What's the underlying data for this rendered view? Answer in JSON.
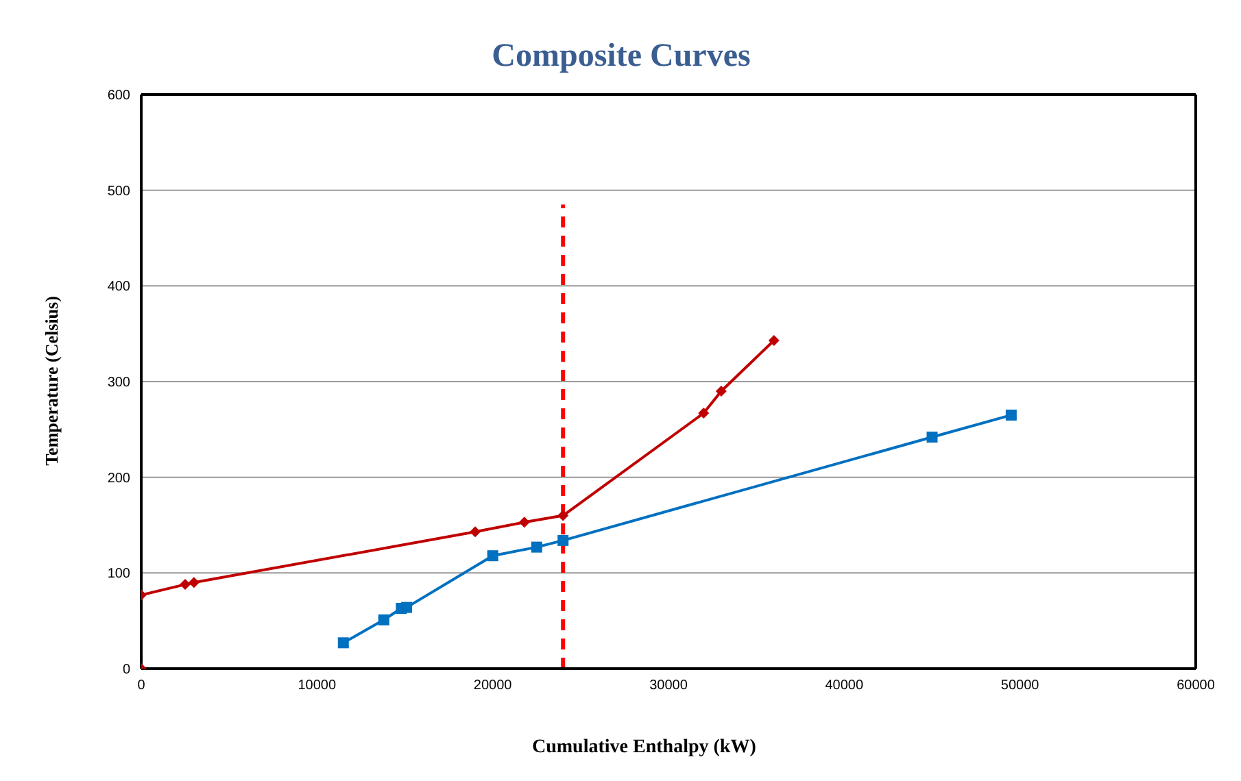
{
  "chart_data": {
    "type": "line",
    "title": "Composite Curves",
    "xlabel": "Cumulative Enthalpy (kW)",
    "ylabel": "Temperature (Celsius)",
    "xlim": [
      0,
      60000
    ],
    "xticks": [
      0,
      10000,
      20000,
      30000,
      40000,
      50000,
      60000
    ],
    "ylim": [
      0,
      600
    ],
    "yticks": [
      0,
      100,
      200,
      300,
      400,
      500,
      600
    ],
    "grid": "y",
    "series": [
      {
        "color": "#c00000",
        "marker": "diamond",
        "x": [
          0,
          0,
          2500,
          3000,
          19000,
          21800,
          24000,
          32000,
          33000,
          36000
        ],
        "values": [
          0,
          77,
          88,
          90,
          143,
          153,
          160,
          267,
          290,
          343
        ]
      },
      {
        "color": "#0070c0",
        "marker": "square",
        "x": [
          11500,
          13800,
          14800,
          15100,
          20000,
          22500,
          24000,
          45000,
          49500
        ],
        "values": [
          27,
          51,
          63,
          64,
          118,
          127,
          134,
          242,
          265
        ]
      },
      {
        "color": "#ff0000",
        "marker": "none",
        "line_style": "dashed",
        "x": [
          24000,
          24000
        ],
        "values": [
          0,
          485
        ]
      }
    ]
  }
}
